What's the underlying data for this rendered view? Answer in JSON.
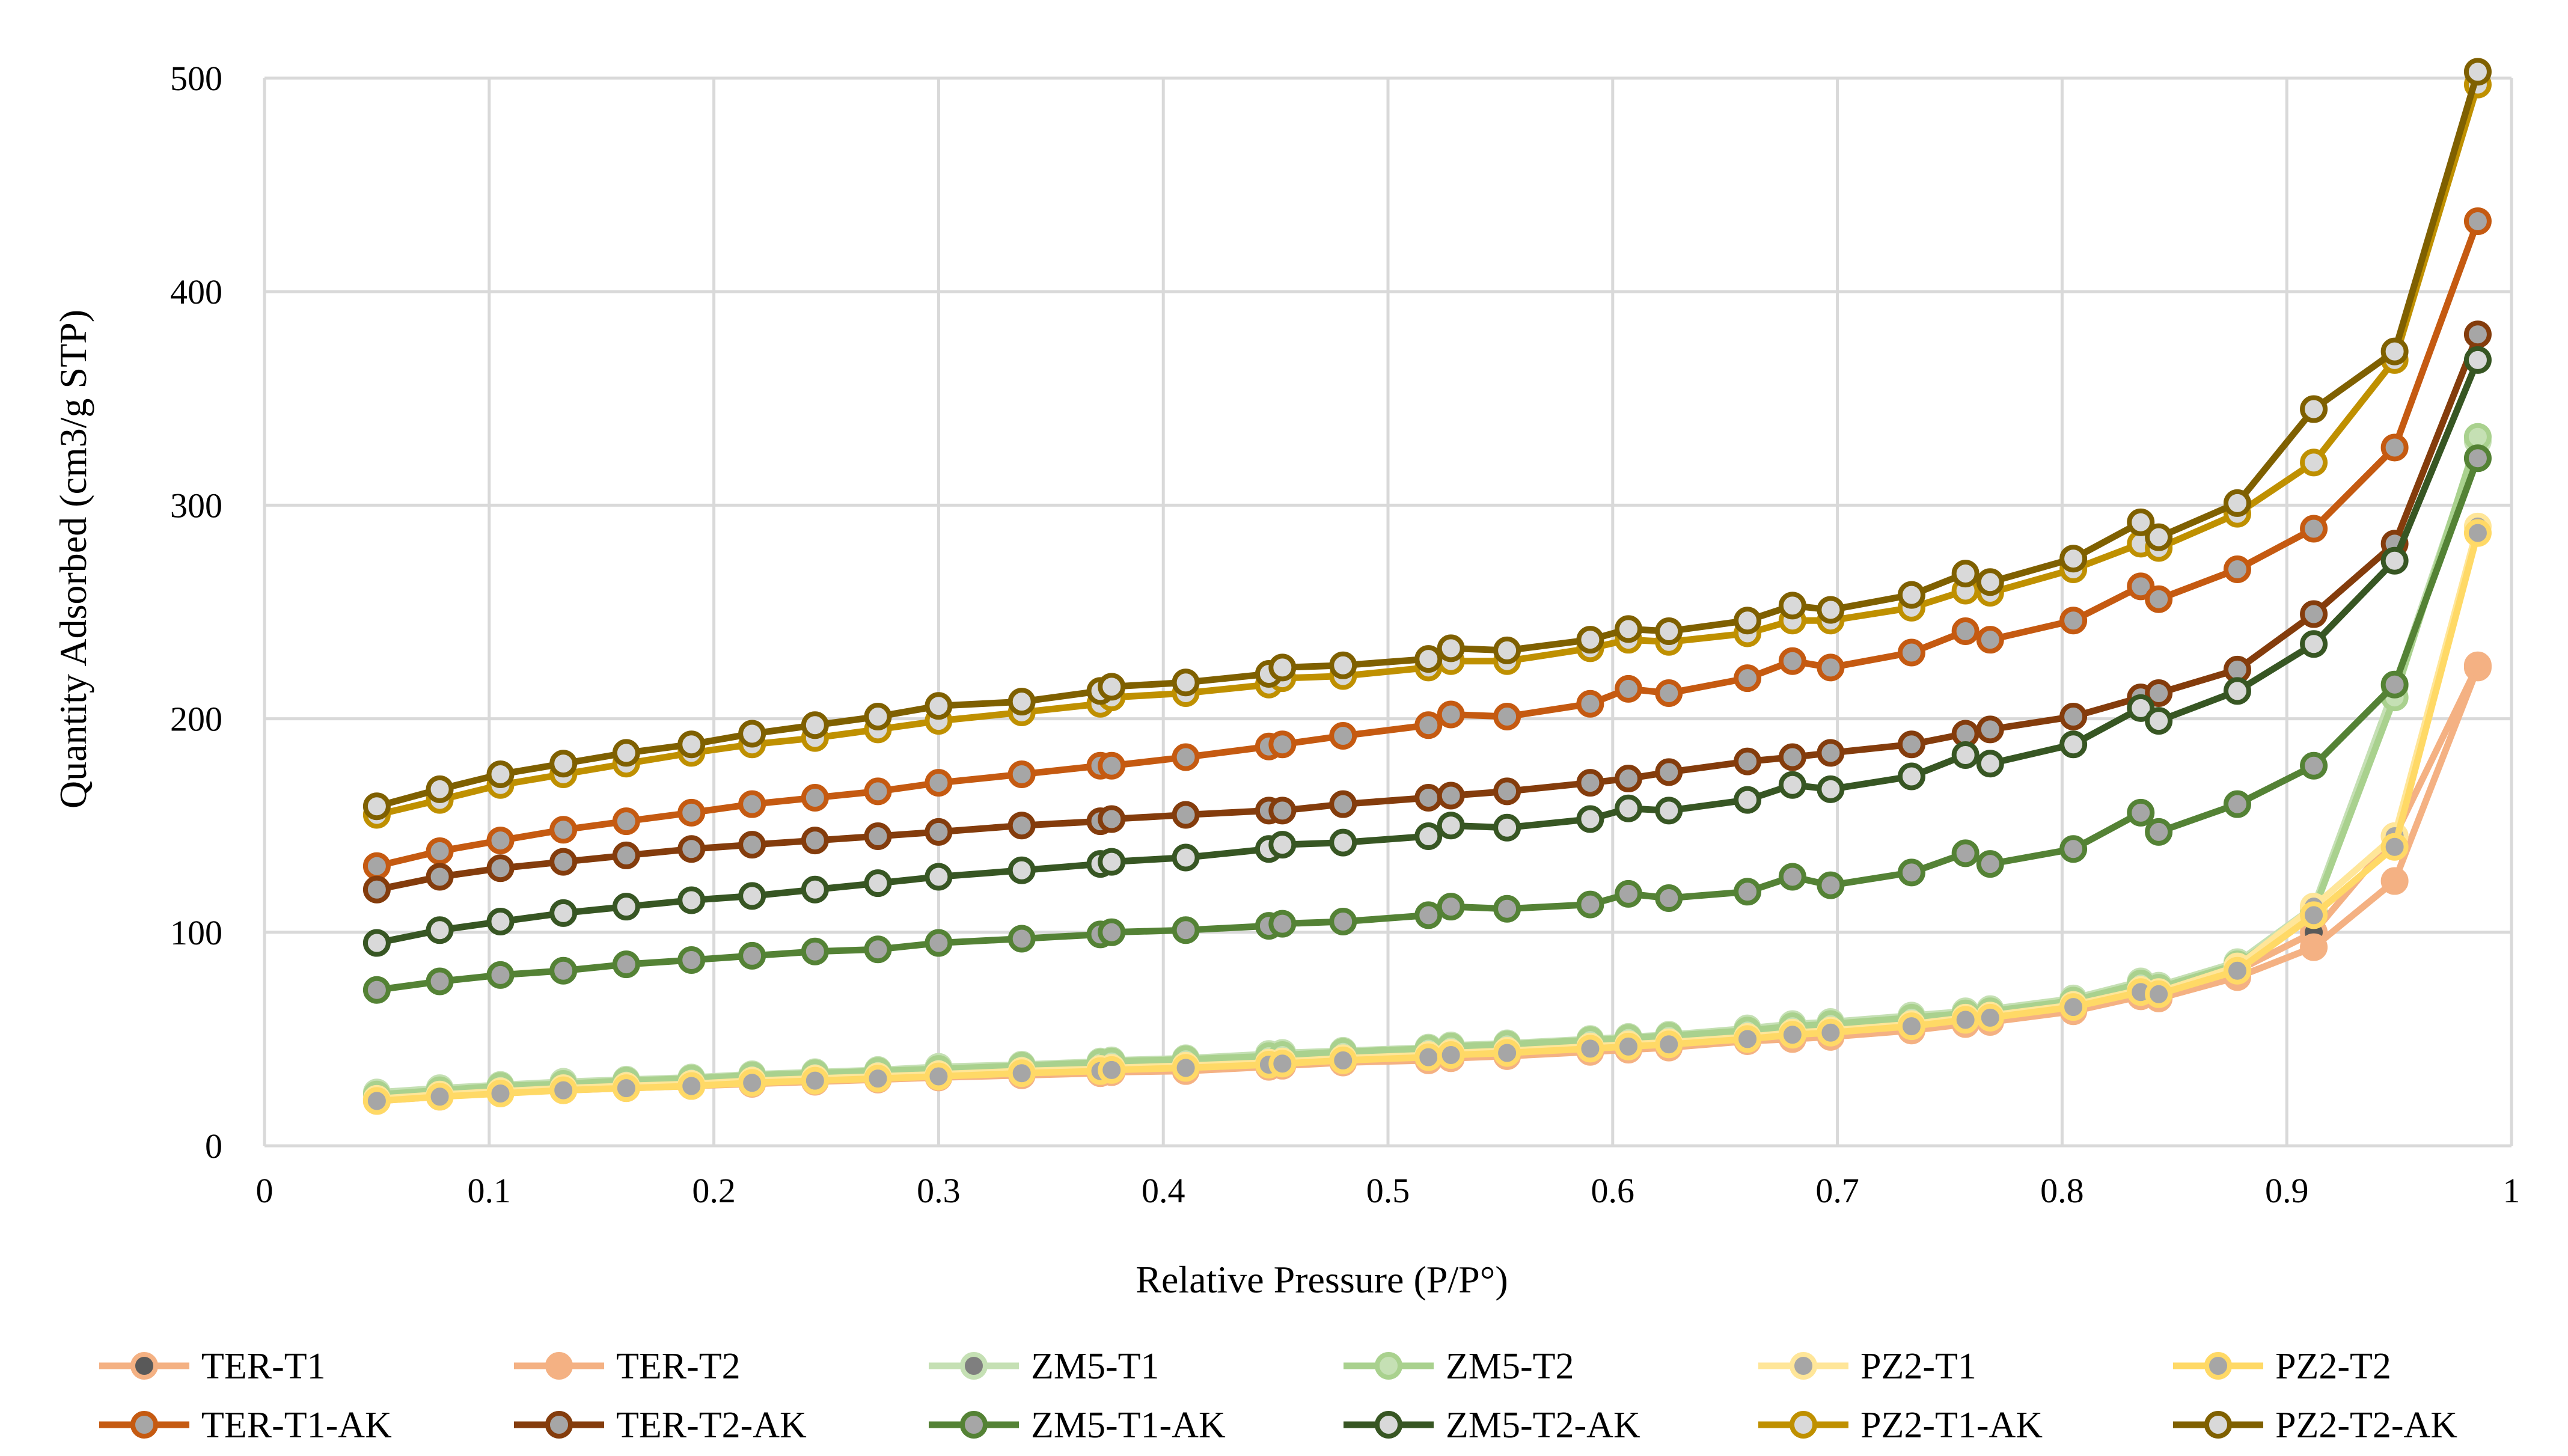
{
  "chart_data": {
    "type": "line",
    "title": "",
    "xlabel": "Relative Pressure (P/P°)",
    "ylabel": "Quantity Adsorbed (cm3/g STP)",
    "xlim": [
      0,
      1
    ],
    "ylim": [
      0,
      500
    ],
    "xticks": [
      0,
      0.1,
      0.2,
      0.3,
      0.4,
      0.5,
      0.6,
      0.7,
      0.8,
      0.9,
      1
    ],
    "xtick_labels": [
      "0",
      "0.1",
      "0.2",
      "0.3",
      "0.4",
      "0.5",
      "0.6",
      "0.7",
      "0.8",
      "0.9",
      "1"
    ],
    "yticks": [
      0,
      100,
      200,
      300,
      400,
      500
    ],
    "ytick_labels": [
      "0",
      "100",
      "200",
      "300",
      "400",
      "500"
    ],
    "grid": true,
    "legend_position": "bottom",
    "series": [
      {
        "name": "TER-T1",
        "line_color": "#F4B183",
        "marker_fill": "#595959",
        "marker_stroke": "#F4B183",
        "x": [
          0.05,
          0.078,
          0.105,
          0.133,
          0.161,
          0.19,
          0.217,
          0.245,
          0.273,
          0.3,
          0.337,
          0.372,
          0.377,
          0.41,
          0.447,
          0.453,
          0.48,
          0.518,
          0.528,
          0.553,
          0.59,
          0.607,
          0.625,
          0.66,
          0.68,
          0.697,
          0.733,
          0.757,
          0.768,
          0.805,
          0.835,
          0.843,
          0.878,
          0.912,
          0.948,
          0.985
        ],
        "y": [
          22,
          24,
          26,
          27,
          28,
          29,
          30,
          31,
          32,
          33,
          34,
          35,
          35.5,
          36,
          38,
          38.5,
          40,
          41,
          42,
          43,
          45,
          46,
          47,
          50,
          52,
          53,
          56,
          59,
          60,
          65,
          72,
          71,
          82,
          100,
          145,
          225
        ]
      },
      {
        "name": "TER-T2",
        "line_color": "#F4B183",
        "marker_fill": "#F4B183",
        "marker_stroke": "#F4B183",
        "x": [
          0.05,
          0.078,
          0.105,
          0.133,
          0.161,
          0.19,
          0.217,
          0.245,
          0.273,
          0.3,
          0.337,
          0.372,
          0.377,
          0.41,
          0.447,
          0.453,
          0.48,
          0.518,
          0.528,
          0.553,
          0.59,
          0.607,
          0.625,
          0.66,
          0.68,
          0.697,
          0.733,
          0.757,
          0.768,
          0.805,
          0.835,
          0.843,
          0.878,
          0.912,
          0.948,
          0.985
        ],
        "y": [
          21,
          23,
          25,
          26,
          27,
          28,
          29,
          30,
          31,
          32,
          33,
          34,
          34.5,
          35,
          37,
          37.5,
          39,
          40,
          41,
          42,
          44,
          45,
          46,
          49,
          50,
          51,
          54,
          57,
          58,
          63,
          70,
          69,
          79,
          93,
          124,
          224
        ]
      },
      {
        "name": "ZM5-T1",
        "line_color": "#C5E0B4",
        "marker_fill": "#7F7F7F",
        "marker_stroke": "#C5E0B4",
        "x": [
          0.05,
          0.078,
          0.105,
          0.133,
          0.161,
          0.19,
          0.217,
          0.245,
          0.273,
          0.3,
          0.337,
          0.372,
          0.377,
          0.41,
          0.447,
          0.453,
          0.48,
          0.518,
          0.528,
          0.553,
          0.59,
          0.607,
          0.625,
          0.66,
          0.68,
          0.697,
          0.733,
          0.757,
          0.768,
          0.805,
          0.835,
          0.843,
          0.878,
          0.912,
          0.948,
          0.985
        ],
        "y": [
          25,
          27,
          28.5,
          30,
          31,
          32,
          33.5,
          34.5,
          35.5,
          37,
          38,
          39.5,
          40,
          41,
          43,
          43.5,
          44.5,
          46,
          47,
          48,
          50,
          51,
          52,
          55,
          57,
          58,
          61,
          63,
          64,
          69,
          77,
          75,
          86,
          112,
          215,
          330
        ]
      },
      {
        "name": "ZM5-T2",
        "line_color": "#A9D18E",
        "marker_fill": "#C5E0B4",
        "marker_stroke": "#A9D18E",
        "x": [
          0.05,
          0.078,
          0.105,
          0.133,
          0.161,
          0.19,
          0.217,
          0.245,
          0.273,
          0.3,
          0.337,
          0.372,
          0.377,
          0.41,
          0.447,
          0.453,
          0.48,
          0.518,
          0.528,
          0.553,
          0.59,
          0.607,
          0.625,
          0.66,
          0.68,
          0.697,
          0.733,
          0.757,
          0.768,
          0.805,
          0.835,
          0.843,
          0.878,
          0.912,
          0.948,
          0.985
        ],
        "y": [
          24,
          26,
          28,
          29,
          30.5,
          31.5,
          33,
          34,
          35,
          36,
          37.5,
          39,
          39.5,
          40.5,
          42,
          42.5,
          44,
          45.5,
          46.5,
          47.5,
          49.5,
          50.5,
          51.5,
          54,
          56,
          57,
          60,
          62,
          63,
          68,
          76,
          74,
          85,
          110,
          210,
          332
        ]
      },
      {
        "name": "PZ2-T1",
        "line_color": "#FFE699",
        "marker_fill": "#A6A6A6",
        "marker_stroke": "#FFE699",
        "x": [
          0.05,
          0.078,
          0.105,
          0.133,
          0.161,
          0.19,
          0.217,
          0.245,
          0.273,
          0.3,
          0.337,
          0.372,
          0.377,
          0.41,
          0.447,
          0.453,
          0.48,
          0.518,
          0.528,
          0.553,
          0.59,
          0.607,
          0.625,
          0.66,
          0.68,
          0.697,
          0.733,
          0.757,
          0.768,
          0.805,
          0.835,
          0.843,
          0.878,
          0.912,
          0.948,
          0.985
        ],
        "y": [
          22,
          24,
          25.5,
          27,
          28,
          29,
          30.5,
          31.5,
          32.5,
          33.5,
          35,
          36,
          36.5,
          37.5,
          39,
          39.5,
          41,
          42.5,
          43.5,
          44.5,
          46.5,
          47.5,
          48.5,
          51,
          53,
          54,
          57,
          60,
          61,
          66,
          73,
          72,
          84,
          112,
          145,
          290
        ]
      },
      {
        "name": "PZ2-T2",
        "line_color": "#FFD966",
        "marker_fill": "#A6A6A6",
        "marker_stroke": "#FFD966",
        "x": [
          0.05,
          0.078,
          0.105,
          0.133,
          0.161,
          0.19,
          0.217,
          0.245,
          0.273,
          0.3,
          0.337,
          0.372,
          0.377,
          0.41,
          0.447,
          0.453,
          0.48,
          0.518,
          0.528,
          0.553,
          0.59,
          0.607,
          0.625,
          0.66,
          0.68,
          0.697,
          0.733,
          0.757,
          0.768,
          0.805,
          0.835,
          0.843,
          0.878,
          0.912,
          0.948,
          0.985
        ],
        "y": [
          21,
          23,
          24.5,
          26,
          27,
          28,
          29.5,
          30.5,
          31.5,
          32.5,
          34,
          35,
          35.5,
          36.5,
          38,
          38.5,
          40,
          41.5,
          42.5,
          43.5,
          45.5,
          46.5,
          47.5,
          50,
          52,
          53,
          56,
          59,
          60,
          65,
          72,
          71,
          82,
          108,
          140,
          287
        ]
      },
      {
        "name": "TER-T1-AK",
        "line_color": "#C55A11",
        "marker_fill": "#A6A6A6",
        "marker_stroke": "#C55A11",
        "x": [
          0.05,
          0.078,
          0.105,
          0.133,
          0.161,
          0.19,
          0.217,
          0.245,
          0.273,
          0.3,
          0.337,
          0.372,
          0.377,
          0.41,
          0.447,
          0.453,
          0.48,
          0.518,
          0.528,
          0.553,
          0.59,
          0.607,
          0.625,
          0.66,
          0.68,
          0.697,
          0.733,
          0.757,
          0.768,
          0.805,
          0.835,
          0.843,
          0.878,
          0.912,
          0.948,
          0.985
        ],
        "y": [
          131,
          138,
          143,
          148,
          152,
          156,
          160,
          163,
          166,
          170,
          174,
          178,
          178,
          182,
          187,
          188,
          192,
          197,
          202,
          201,
          207,
          214,
          212,
          219,
          227,
          224,
          231,
          241,
          237,
          246,
          262,
          256,
          270,
          289,
          327,
          433
        ]
      },
      {
        "name": "TER-T2-AK",
        "line_color": "#843C0C",
        "marker_fill": "#A6A6A6",
        "marker_stroke": "#843C0C",
        "x": [
          0.05,
          0.078,
          0.105,
          0.133,
          0.161,
          0.19,
          0.217,
          0.245,
          0.273,
          0.3,
          0.337,
          0.372,
          0.377,
          0.41,
          0.447,
          0.453,
          0.48,
          0.518,
          0.528,
          0.553,
          0.59,
          0.607,
          0.625,
          0.66,
          0.68,
          0.697,
          0.733,
          0.757,
          0.768,
          0.805,
          0.835,
          0.843,
          0.878,
          0.912,
          0.948,
          0.985
        ],
        "y": [
          120,
          126,
          130,
          133,
          136,
          139,
          141,
          143,
          145,
          147,
          150,
          152,
          153,
          155,
          157,
          157,
          160,
          163,
          164,
          166,
          170,
          172,
          175,
          180,
          182,
          184,
          188,
          193,
          195,
          201,
          210,
          212,
          223,
          249,
          282,
          380
        ]
      },
      {
        "name": "ZM5-T1-AK",
        "line_color": "#548235",
        "marker_fill": "#A6A6A6",
        "marker_stroke": "#548235",
        "x": [
          0.05,
          0.078,
          0.105,
          0.133,
          0.161,
          0.19,
          0.217,
          0.245,
          0.273,
          0.3,
          0.337,
          0.372,
          0.377,
          0.41,
          0.447,
          0.453,
          0.48,
          0.518,
          0.528,
          0.553,
          0.59,
          0.607,
          0.625,
          0.66,
          0.68,
          0.697,
          0.733,
          0.757,
          0.768,
          0.805,
          0.835,
          0.843,
          0.878,
          0.912,
          0.948,
          0.985
        ],
        "y": [
          73,
          77,
          80,
          82,
          85,
          87,
          89,
          91,
          92,
          95,
          97,
          99,
          100,
          101,
          103,
          104,
          105,
          108,
          112,
          111,
          113,
          118,
          116,
          119,
          126,
          122,
          128,
          137,
          132,
          139,
          156,
          147,
          160,
          178,
          216,
          322
        ]
      },
      {
        "name": "ZM5-T2-AK",
        "line_color": "#375623",
        "marker_fill": "#D9D9D9",
        "marker_stroke": "#375623",
        "x": [
          0.05,
          0.078,
          0.105,
          0.133,
          0.161,
          0.19,
          0.217,
          0.245,
          0.273,
          0.3,
          0.337,
          0.372,
          0.377,
          0.41,
          0.447,
          0.453,
          0.48,
          0.518,
          0.528,
          0.553,
          0.59,
          0.607,
          0.625,
          0.66,
          0.68,
          0.697,
          0.733,
          0.757,
          0.768,
          0.805,
          0.835,
          0.843,
          0.878,
          0.912,
          0.948,
          0.985
        ],
        "y": [
          95,
          101,
          105,
          109,
          112,
          115,
          117,
          120,
          123,
          126,
          129,
          132,
          133,
          135,
          139,
          141,
          142,
          145,
          150,
          149,
          153,
          158,
          157,
          162,
          169,
          167,
          173,
          183,
          179,
          188,
          205,
          199,
          213,
          235,
          274,
          368
        ]
      },
      {
        "name": "PZ2-T1-AK",
        "line_color": "#BF9000",
        "marker_fill": "#D9D9D9",
        "marker_stroke": "#BF9000",
        "x": [
          0.05,
          0.078,
          0.105,
          0.133,
          0.161,
          0.19,
          0.217,
          0.245,
          0.273,
          0.3,
          0.337,
          0.372,
          0.377,
          0.41,
          0.447,
          0.453,
          0.48,
          0.518,
          0.528,
          0.553,
          0.59,
          0.607,
          0.625,
          0.66,
          0.68,
          0.697,
          0.733,
          0.757,
          0.768,
          0.805,
          0.835,
          0.843,
          0.878,
          0.912,
          0.948,
          0.985
        ],
        "y": [
          155,
          162,
          169,
          174,
          179,
          184,
          188,
          191,
          195,
          199,
          203,
          207,
          210,
          212,
          216,
          219,
          220,
          224,
          227,
          227,
          233,
          237,
          236,
          240,
          246,
          246,
          252,
          260,
          259,
          270,
          282,
          280,
          296,
          320,
          368,
          497
        ]
      },
      {
        "name": "PZ2-T2-AK",
        "line_color": "#7F6000",
        "marker_fill": "#D9D9D9",
        "marker_stroke": "#7F6000",
        "x": [
          0.05,
          0.078,
          0.105,
          0.133,
          0.161,
          0.19,
          0.217,
          0.245,
          0.273,
          0.3,
          0.337,
          0.372,
          0.377,
          0.41,
          0.447,
          0.453,
          0.48,
          0.518,
          0.528,
          0.553,
          0.59,
          0.607,
          0.625,
          0.66,
          0.68,
          0.697,
          0.733,
          0.757,
          0.768,
          0.805,
          0.835,
          0.843,
          0.878,
          0.912,
          0.948,
          0.985
        ],
        "y": [
          159,
          167,
          174,
          179,
          184,
          188,
          193,
          197,
          201,
          206,
          208,
          213,
          215,
          217,
          221,
          224,
          225,
          228,
          233,
          232,
          237,
          242,
          241,
          246,
          253,
          251,
          258,
          268,
          264,
          275,
          292,
          285,
          301,
          345,
          372,
          503
        ]
      }
    ]
  }
}
